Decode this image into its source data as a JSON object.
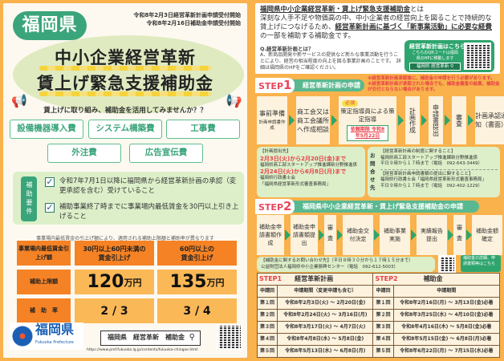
{
  "left": {
    "dates": [
      "令和8年2月3日経営革新計画申請受付開始",
      "令和8年2月16日補助金申請受付開始"
    ],
    "badge": "福岡県",
    "title": [
      "中小企業経営革新",
      "賃上げ緊急支援補助金"
    ],
    "tagline": "賃上げに取り組み、補助金を活用してみませんか？？",
    "categories": [
      "設備機器導入費",
      "システム構築費",
      "工事費",
      "外注費",
      "広告宣伝費"
    ],
    "requirements_label": "補助要件",
    "requirements": [
      "令和7年7月1日以降に福岡県から経営革新計画の承認（変更承認を含む）受けていること",
      "補助事業終了時までに事業場内最低賃金を30円以上引き上げること"
    ],
    "note": "事業場内最低賃金の引上げ額により、適用される補助上限額と補助率が異なります",
    "table": {
      "headers": [
        "事業場内最低賃金引上げ額",
        "30円以上60円未満の賃金引上げ",
        "60円以上の賃金引上げ"
      ],
      "limit_label": "補助上限額",
      "limits": [
        "120",
        "135"
      ],
      "limit_unit": "万円",
      "rate_label": "補　助　率",
      "rates": [
        "2 / 3",
        "3 / 4"
      ]
    },
    "logo_text": "福岡県",
    "logo_sub": "Fukuoka Prefecture",
    "search_text": "福岡県　経営革新　補助金",
    "url": "https://www.pref.fukuoka.lg.jp/contents/fukuoka-chingae.html"
  },
  "right": {
    "intro": {
      "title": "福岡県中小企業経営革新・賃上げ緊急支援補助金",
      "title_suffix": "とは",
      "body1": "深刻な人手不足や物価高の中、中小企業者の経営向上を図ることで持続的な賃上げにつなげるため、",
      "body_emph": "経営革新計画に基づく「新事業活動」に必要な経費",
      "body2": "の一部を補助する補助金です。",
      "q": "Q.経営革新計画とは？",
      "a": "A．新商品開発や新サービスの提供など新たな事業活動を行うことにより、経営の相当程度の向上を図る事業計画のことです。　詳細は福岡県のHPをご確認ください。",
      "qr_title": "経営革新計画はこちら",
      "qr_text": "こちらのQRコードは福岡県のHPに移動します",
      "qr_search": "福岡県 経営革新"
    },
    "step1": {
      "label": "STEP",
      "num": "1",
      "title": "経営革新計画の申請",
      "notes": [
        "※経営革新計画承認後に、補助金の申請を行う必要があります。",
        "※経営革新計画が承認された場合でも、補助金審査の結果、補助金が交付とならない場合があります。"
      ],
      "flow": [
        {
          "t": "事前準備",
          "s": "計画申請書作成"
        },
        {
          "t": "商工会又は商工会議所へ作成相談"
        },
        {
          "t": "策定指導員による策定指導",
          "badge": "必須",
          "deadline": "依頼期限 令和8年5月22日"
        },
        {
          "t": "計画作成"
        },
        {
          "t": "申請書提出"
        },
        {
          "t": "審査"
        },
        {
          "t": "計画承認通知（書面）"
        }
      ]
    },
    "submit": {
      "title": "【計画提出先】",
      "p1": "2月3日(火)から2月20日(金)まで",
      "o1": "福岡県商工部スタートアップ推進課新分野推進係",
      "p2": "2月24日(火)から6月8日(月)まで",
      "o2": "福岡県行政書士会",
      "o2b": "「福岡県経営革新形式審査事務局」"
    },
    "inquiry": {
      "label": "お問合せ先",
      "h1": "【経営革新計画の制度に関すること】",
      "l1": "福岡県商工部スタートアップ推進課新分野推進係",
      "t1": "平日９時から１７時まで（電話　092-643-3449）",
      "h2": "【経営革新計画申請書類の提出に関すること】",
      "l2": "福岡県行政書士会「福岡県経営革新形式審査事務局」",
      "t2": "平日９時から１７時まで（電話　092-402-1229）"
    },
    "step2": {
      "label": "STEP",
      "num": "2",
      "title": "福岡県中小企業経営革新・賃上げ緊急支援補助金の申請",
      "flow": [
        "補助金申請書類作成",
        "補助金申請書類提出",
        "審査",
        "補助金交付決定",
        "補助事業実施",
        "実績報告提出",
        "審査",
        "補助金額確定"
      ]
    },
    "help": {
      "title": "【補助金に関するお問い合わせ先】（平日８時３０分から１７時１５分まで）",
      "org": "公益財団法人福岡県中小企業振興センター（電話　092-612-5003）",
      "qr_text": "補助金の詳細、申請書類等はこちら"
    },
    "schedule": {
      "step1_label": "STEP1",
      "step1_title": "経営革新計画",
      "step2_label": "STEP2",
      "step2_title": "補助金",
      "col_round": "申請回",
      "col_period1": "申請期間（変更申請も含む）",
      "col_period2": "申請期間",
      "rows": [
        [
          "第１回",
          "令和8年2月3日(火) ～ 2月20日(金)",
          "第１回",
          "令和8年2月16日(月) ～ 3月13日(金)必着"
        ],
        [
          "第２回",
          "令和8年2月24日(火) ～ 3月16日(月)",
          "第２回",
          "令和8年3月25日(水) ～ 4月10日(金)必着"
        ],
        [
          "第３回",
          "令和8年3月17日(火) ～ 4月7日(火)",
          "第３回",
          "令和8年4月16日(木) ～ 5月8日(金)必着"
        ],
        [
          "第４回",
          "令和8年4月8日(水) ～ 5月8日(金)",
          "第４回",
          "令和8年5月15日(金) ～ 6月8日(月)必着"
        ],
        [
          "第５回",
          "令和8年5月13日(水) ～ 6月8日(月)",
          "第５回",
          "令和8年6月22日(月) ～ 7月15日(水)必着"
        ]
      ]
    }
  },
  "colors": {
    "orange": "#f9b24c",
    "green": "#3aa57a",
    "red": "#e8404a",
    "deep_orange": "#f58225"
  }
}
